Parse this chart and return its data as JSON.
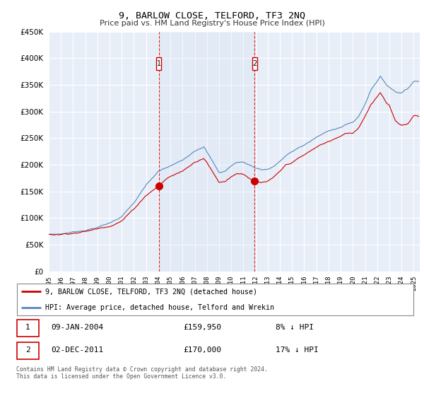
{
  "title": "9, BARLOW CLOSE, TELFORD, TF3 2NQ",
  "subtitle": "Price paid vs. HM Land Registry's House Price Index (HPI)",
  "ylim": [
    0,
    450000
  ],
  "yticks": [
    0,
    50000,
    100000,
    150000,
    200000,
    250000,
    300000,
    350000,
    400000,
    450000
  ],
  "xlim_start": 1995.0,
  "xlim_end": 2025.5,
  "bg_color": "#ffffff",
  "plot_bg_color": "#e8eef8",
  "grid_color": "#ffffff",
  "hpi_color": "#5588bb",
  "price_color": "#cc0000",
  "dashed_color": "#dd2222",
  "transaction1_date_num": 2004.04,
  "transaction2_date_num": 2011.92,
  "transaction1_price": 159950,
  "transaction2_price": 170000,
  "transaction1_label": "09-JAN-2004",
  "transaction2_label": "02-DEC-2011",
  "transaction1_text": "£159,950",
  "transaction2_text": "£170,000",
  "transaction1_hpi": "8% ↓ HPI",
  "transaction2_hpi": "17% ↓ HPI",
  "legend_label1": "9, BARLOW CLOSE, TELFORD, TF3 2NQ (detached house)",
  "legend_label2": "HPI: Average price, detached house, Telford and Wrekin",
  "footnote": "Contains HM Land Registry data © Crown copyright and database right 2024.\nThis data is licensed under the Open Government Licence v3.0."
}
